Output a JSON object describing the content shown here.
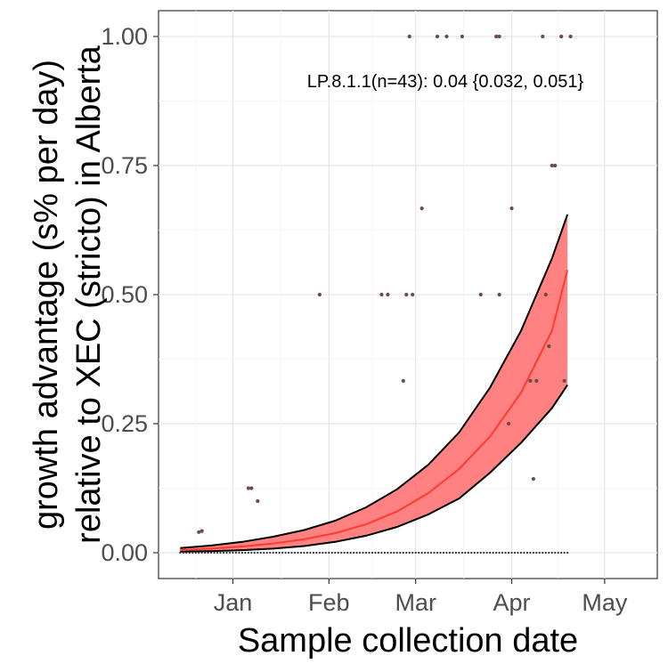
{
  "chart_data": {
    "type": "line",
    "title": "",
    "xlabel": "Sample collection date",
    "ylabel": [
      "growth advantage (s% per day)",
      "relative to XEC (stricto) in Alberta"
    ],
    "annotation": "LP.8.1.1(n=43): 0.04 {0.032, 0.051}",
    "x_ticks": [
      {
        "label": "Jan",
        "date": "2025-01-01"
      },
      {
        "label": "Feb",
        "date": "2025-02-01"
      },
      {
        "label": "Mar",
        "date": "2025-03-01"
      },
      {
        "label": "Apr",
        "date": "2025-04-01"
      },
      {
        "label": "May",
        "date": "2025-05-01"
      }
    ],
    "xlim": [
      "2024-12-08",
      "2025-05-18"
    ],
    "y_ticks": [
      "0.00",
      "0.25",
      "0.50",
      "0.75",
      "1.00"
    ],
    "ylim": [
      -0.05,
      1.05
    ],
    "grid": true,
    "colors": {
      "fit": "#ff3b30",
      "ribbon": "#ff6b6b",
      "bound": "#000000",
      "point": "#555555"
    },
    "series": [
      {
        "name": "",
        "x": [
          "2024-12-15",
          "2024-12-25",
          "2025-01-04",
          "2025-01-14",
          "2025-01-24",
          "2025-02-03",
          "2025-02-13",
          "2025-02-23",
          "2025-03-05",
          "2025-03-15",
          "2025-03-25",
          "2025-04-04",
          "2025-04-14",
          "2025-04-19"
        ],
        "y": [
          0.005,
          0.008,
          0.012,
          0.018,
          0.026,
          0.038,
          0.055,
          0.08,
          0.115,
          0.162,
          0.225,
          0.31,
          0.43,
          0.548
        ],
        "lower": [
          0.002,
          0.003,
          0.005,
          0.008,
          0.013,
          0.021,
          0.033,
          0.05,
          0.074,
          0.105,
          0.155,
          0.213,
          0.28,
          0.325
        ],
        "upper": [
          0.009,
          0.014,
          0.021,
          0.031,
          0.044,
          0.062,
          0.088,
          0.123,
          0.17,
          0.233,
          0.32,
          0.43,
          0.57,
          0.655
        ]
      }
    ],
    "points": [
      {
        "x": "2024-12-21",
        "y": 0.04
      },
      {
        "x": "2024-12-22",
        "y": 0.042
      },
      {
        "x": "2025-01-06",
        "y": 0.125
      },
      {
        "x": "2025-01-07",
        "y": 0.125
      },
      {
        "x": "2025-01-09",
        "y": 0.1
      },
      {
        "x": "2025-01-29",
        "y": 0.5
      },
      {
        "x": "2025-02-18",
        "y": 0.5
      },
      {
        "x": "2025-02-20",
        "y": 0.5
      },
      {
        "x": "2025-02-25",
        "y": 0.333
      },
      {
        "x": "2025-02-26",
        "y": 0.5
      },
      {
        "x": "2025-02-28",
        "y": 0.5
      },
      {
        "x": "2025-02-27",
        "y": 1.0
      },
      {
        "x": "2025-03-03",
        "y": 0.667
      },
      {
        "x": "2025-03-08",
        "y": 1.0
      },
      {
        "x": "2025-03-11",
        "y": 1.0
      },
      {
        "x": "2025-03-16",
        "y": 1.0
      },
      {
        "x": "2025-03-22",
        "y": 0.5
      },
      {
        "x": "2025-03-28",
        "y": 0.5
      },
      {
        "x": "2025-03-27",
        "y": 1.0
      },
      {
        "x": "2025-03-28",
        "y": 1.0
      },
      {
        "x": "2025-03-31",
        "y": 0.25
      },
      {
        "x": "2025-04-01",
        "y": 0.667
      },
      {
        "x": "2025-04-07",
        "y": 0.333
      },
      {
        "x": "2025-04-08",
        "y": 0.143
      },
      {
        "x": "2025-04-09",
        "y": 0.333
      },
      {
        "x": "2025-04-11",
        "y": 1.0
      },
      {
        "x": "2025-04-12",
        "y": 0.5
      },
      {
        "x": "2025-04-13",
        "y": 0.4
      },
      {
        "x": "2025-04-14",
        "y": 0.75
      },
      {
        "x": "2025-04-15",
        "y": 0.75
      },
      {
        "x": "2025-04-17",
        "y": 1.0
      },
      {
        "x": "2025-04-18",
        "y": 0.333
      },
      {
        "x": "2025-04-20",
        "y": 1.0
      }
    ],
    "zero_points": {
      "start": "2024-12-15",
      "end": "2025-04-19",
      "step_days": 1,
      "y": 0
    }
  }
}
